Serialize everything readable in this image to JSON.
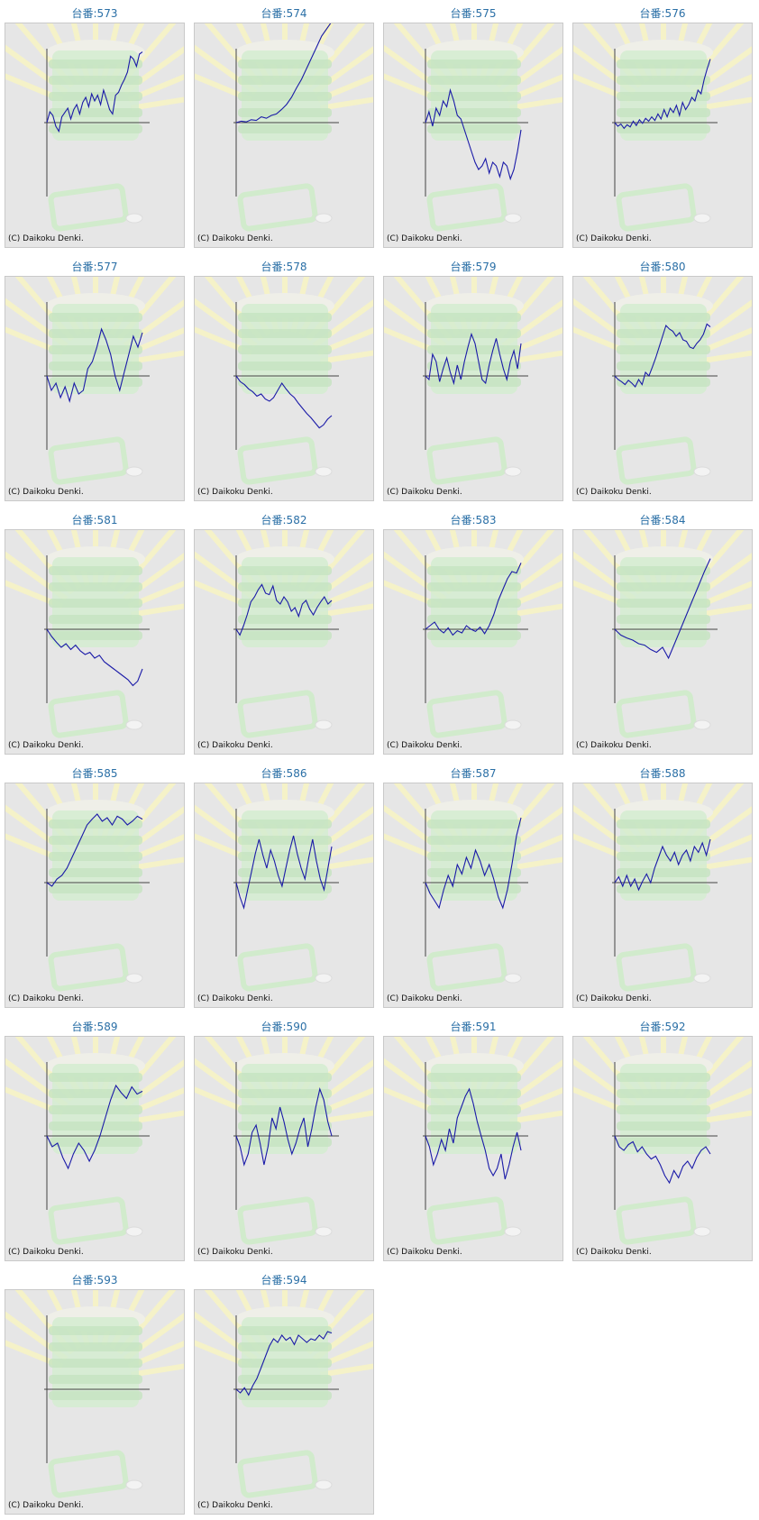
{
  "copyright": "(C) Daikoku Denki.",
  "colors": {
    "title": "#2a6fa6",
    "line": "#1a1aa8",
    "axis": "#444444",
    "panel_bg": "#e6e6e6",
    "decoration_green": "#d4ecd0",
    "decoration_yellow": "#f5f2c8"
  },
  "background_icon": "slot-machine-rays-watermark",
  "chart_data": [
    {
      "type": "line",
      "title": "台番:573",
      "values": [
        0,
        15,
        10,
        -5,
        -12,
        8,
        14,
        20,
        5,
        18,
        25,
        12,
        28,
        35,
        22,
        40,
        30,
        38,
        25,
        45,
        32,
        18,
        12,
        38,
        42,
        52,
        60,
        70,
        92,
        88,
        78,
        95,
        98
      ]
    },
    {
      "type": "line",
      "title": "台番:574",
      "values": [
        0,
        2,
        1,
        4,
        3,
        8,
        6,
        10,
        12,
        18,
        25,
        35,
        48,
        60,
        75,
        90,
        105,
        120,
        130,
        140
      ]
    },
    {
      "type": "line",
      "title": "台番:575",
      "values": [
        0,
        15,
        -5,
        20,
        10,
        30,
        22,
        45,
        30,
        10,
        5,
        -10,
        -25,
        -40,
        -55,
        -65,
        -60,
        -50,
        -70,
        -55,
        -60,
        -75,
        -55,
        -60,
        -78,
        -65,
        -40,
        -10
      ]
    },
    {
      "type": "line",
      "title": "台番:576",
      "values": [
        0,
        -5,
        -2,
        -8,
        -3,
        -6,
        2,
        -4,
        4,
        -1,
        6,
        2,
        8,
        3,
        12,
        5,
        18,
        8,
        20,
        14,
        24,
        10,
        28,
        18,
        25,
        35,
        30,
        45,
        40,
        60,
        75,
        88
      ]
    },
    {
      "type": "line",
      "title": "台番:577",
      "values": [
        0,
        -20,
        -10,
        -30,
        -15,
        -35,
        -10,
        -25,
        -20,
        10,
        20,
        40,
        65,
        50,
        30,
        0,
        -20,
        5,
        30,
        55,
        40,
        60
      ]
    },
    {
      "type": "line",
      "title": "台番:578",
      "values": [
        0,
        -8,
        -12,
        -18,
        -22,
        -28,
        -25,
        -32,
        -35,
        -30,
        -20,
        -10,
        -18,
        -25,
        -30,
        -38,
        -45,
        -52,
        -58,
        -65,
        -72,
        -68,
        -60,
        -55
      ]
    },
    {
      "type": "line",
      "title": "台番:579",
      "values": [
        0,
        -5,
        30,
        20,
        -8,
        10,
        25,
        5,
        -10,
        15,
        -5,
        20,
        40,
        58,
        45,
        20,
        -5,
        -10,
        15,
        35,
        52,
        30,
        10,
        -5,
        20,
        35,
        10,
        45
      ]
    },
    {
      "type": "line",
      "title": "台番:580",
      "values": [
        0,
        -5,
        -8,
        -12,
        -6,
        -10,
        -15,
        -5,
        -12,
        5,
        0,
        12,
        25,
        40,
        55,
        70,
        65,
        62,
        55,
        60,
        50,
        48,
        40,
        38,
        45,
        50,
        58,
        72,
        68
      ]
    },
    {
      "type": "line",
      "title": "台番:581",
      "values": [
        0,
        -10,
        -18,
        -25,
        -20,
        -28,
        -22,
        -30,
        -35,
        -32,
        -40,
        -36,
        -45,
        -50,
        -55,
        -60,
        -65,
        -70,
        -78,
        -72,
        -55
      ]
    },
    {
      "type": "line",
      "title": "台番:582",
      "values": [
        0,
        -8,
        5,
        20,
        38,
        45,
        55,
        62,
        50,
        48,
        60,
        40,
        35,
        45,
        38,
        25,
        30,
        18,
        35,
        40,
        28,
        20,
        30,
        38,
        45,
        35,
        40
      ]
    },
    {
      "type": "line",
      "title": "台番:583",
      "values": [
        0,
        5,
        10,
        0,
        -5,
        2,
        -8,
        -2,
        -5,
        5,
        0,
        -3,
        3,
        -6,
        5,
        20,
        40,
        55,
        70,
        80,
        78,
        92
      ]
    },
    {
      "type": "line",
      "title": "台番:584",
      "values": [
        0,
        -8,
        -12,
        -15,
        -20,
        -22,
        -28,
        -32,
        -25,
        -40,
        -20,
        0,
        20,
        40,
        60,
        80,
        98
      ]
    },
    {
      "type": "line",
      "title": "台番:585",
      "values": [
        0,
        -5,
        5,
        10,
        20,
        35,
        50,
        65,
        80,
        88,
        95,
        85,
        90,
        80,
        92,
        88,
        80,
        85,
        92,
        88
      ]
    },
    {
      "type": "line",
      "title": "台番:586",
      "values": [
        0,
        -20,
        -35,
        -10,
        15,
        40,
        60,
        38,
        20,
        45,
        30,
        10,
        -5,
        20,
        45,
        65,
        40,
        20,
        5,
        35,
        60,
        30,
        5,
        -10,
        20,
        50
      ]
    },
    {
      "type": "line",
      "title": "台番:587",
      "values": [
        0,
        -15,
        -25,
        -35,
        -10,
        10,
        -5,
        25,
        12,
        35,
        20,
        45,
        30,
        10,
        25,
        5,
        -20,
        -35,
        -10,
        25,
        65,
        90
      ]
    },
    {
      "type": "line",
      "title": "台番:588",
      "values": [
        0,
        8,
        -5,
        10,
        -5,
        5,
        -10,
        2,
        12,
        0,
        20,
        35,
        50,
        38,
        30,
        42,
        25,
        38,
        45,
        30,
        50,
        42,
        55,
        38,
        60
      ]
    },
    {
      "type": "line",
      "title": "台番:589",
      "values": [
        0,
        -15,
        -10,
        -30,
        -45,
        -25,
        -10,
        -20,
        -35,
        -20,
        0,
        25,
        50,
        70,
        60,
        52,
        68,
        58,
        62
      ]
    },
    {
      "type": "line",
      "title": "台番:590",
      "values": [
        0,
        -15,
        -40,
        -25,
        5,
        15,
        -10,
        -40,
        -15,
        25,
        10,
        40,
        20,
        -5,
        -25,
        -10,
        10,
        25,
        -15,
        10,
        40,
        65,
        50,
        20,
        0
      ]
    },
    {
      "type": "line",
      "title": "台番:591",
      "values": [
        0,
        -15,
        -40,
        -25,
        -5,
        -20,
        10,
        -10,
        25,
        40,
        55,
        65,
        45,
        20,
        0,
        -20,
        -45,
        -55,
        -45,
        -25,
        -60,
        -40,
        -15,
        5,
        -20
      ]
    },
    {
      "type": "line",
      "title": "台番:592",
      "values": [
        0,
        -15,
        -20,
        -12,
        -8,
        -22,
        -15,
        -25,
        -32,
        -28,
        -40,
        -55,
        -65,
        -48,
        -58,
        -42,
        -35,
        -45,
        -30,
        -20,
        -15,
        -25
      ]
    },
    {
      "type": "line",
      "title": "台番:593",
      "values": []
    },
    {
      "type": "line",
      "title": "台番:594",
      "values": [
        0,
        -5,
        2,
        -8,
        5,
        15,
        30,
        45,
        60,
        70,
        65,
        75,
        68,
        72,
        62,
        75,
        70,
        65,
        70,
        68,
        75,
        70,
        80,
        78
      ]
    }
  ]
}
